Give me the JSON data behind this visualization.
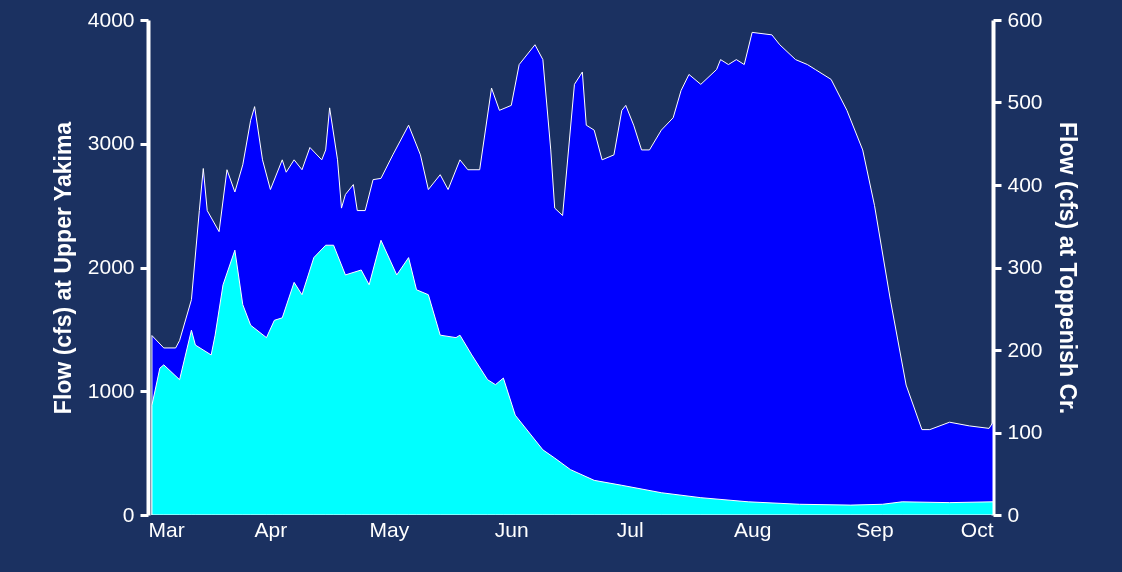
{
  "chart_data": {
    "type": "area",
    "ylabel": "Flow (cfs) at Upper Yakima",
    "y2label": "Flow (cfs) at Toppenish Cr.",
    "xlim": [
      "--03-01",
      "--10-01"
    ],
    "xticks": [
      {
        "value": "--03-01",
        "label": "Mar"
      },
      {
        "value": "--04-01",
        "label": "Apr"
      },
      {
        "value": "--05-01",
        "label": "May"
      },
      {
        "value": "--06-01",
        "label": "Jun"
      },
      {
        "value": "--07-01",
        "label": "Jul"
      },
      {
        "value": "--08-01",
        "label": "Aug"
      },
      {
        "value": "--09-01",
        "label": "Sep"
      },
      {
        "value": "--10-01",
        "label": "Oct"
      }
    ],
    "ylim": [
      0,
      4000
    ],
    "yticks": [
      0,
      1000,
      2000,
      3000,
      4000
    ],
    "y2lim": [
      0,
      600
    ],
    "y2ticks": [
      0,
      100,
      200,
      300,
      400,
      500,
      600
    ],
    "grid": false,
    "series": [
      {
        "color": "#0000ff",
        "x": [
          "--03-02",
          "--03-05",
          "--03-08",
          "--03-09",
          "--03-12",
          "--03-14",
          "--03-15",
          "--03-16",
          "--03-19",
          "--03-21",
          "--03-23",
          "--03-25",
          "--03-27",
          "--03-28",
          "--03-30",
          "--04-01",
          "--04-04",
          "--04-05",
          "--04-07",
          "--04-09",
          "--04-11",
          "--04-14",
          "--04-15",
          "--04-16",
          "--04-18",
          "--04-19",
          "--04-20",
          "--04-22",
          "--04-23",
          "--04-25",
          "--04-27",
          "--04-29",
          "--05-02",
          "--05-06",
          "--05-09",
          "--05-11",
          "--05-14",
          "--05-16",
          "--05-19",
          "--05-21",
          "--05-24",
          "--05-27",
          "--05-29",
          "--06-01",
          "--06-03",
          "--06-07",
          "--06-09",
          "--06-11",
          "--06-12",
          "--06-14",
          "--06-17",
          "--06-19",
          "--06-20",
          "--06-22",
          "--06-24",
          "--06-27",
          "--06-29",
          "--06-30",
          "--07-02",
          "--07-04",
          "--07-06",
          "--07-09",
          "--07-12",
          "--07-14",
          "--07-16",
          "--07-19",
          "--07-23",
          "--07-24",
          "--07-26",
          "--07-28",
          "--07-30",
          "--08-01",
          "--08-06",
          "--08-08",
          "--08-12",
          "--08-15",
          "--08-17",
          "--08-21",
          "--08-25",
          "--08-29",
          "--09-01",
          "--09-05",
          "--09-09",
          "--09-13",
          "--09-15",
          "--09-20",
          "--09-25",
          "--09-30",
          "--10-01"
        ],
        "values": [
          1450,
          1350,
          1350,
          1410,
          1740,
          2460,
          2800,
          2460,
          2290,
          2790,
          2610,
          2830,
          3190,
          3300,
          2870,
          2630,
          2870,
          2770,
          2870,
          2790,
          2970,
          2870,
          2950,
          3290,
          2870,
          2480,
          2590,
          2670,
          2460,
          2460,
          2710,
          2720,
          2910,
          3150,
          2910,
          2630,
          2750,
          2630,
          2870,
          2790,
          2790,
          3450,
          3270,
          3310,
          3640,
          3800,
          3680,
          2950,
          2480,
          2420,
          3480,
          3580,
          3150,
          3110,
          2870,
          2910,
          3270,
          3310,
          3150,
          2950,
          2950,
          3110,
          3210,
          3430,
          3560,
          3480,
          3600,
          3680,
          3640,
          3680,
          3640,
          3900,
          3880,
          3800,
          3680,
          3640,
          3600,
          3520,
          3270,
          2950,
          2500,
          1740,
          1050,
          690,
          690,
          750,
          720,
          700,
          750
        ]
      },
      {
        "color": "#00ffff",
        "axis": "y2",
        "x": [
          "--03-02",
          "--03-04",
          "--03-05",
          "--03-09",
          "--03-12",
          "--03-13",
          "--03-17",
          "--03-18",
          "--03-20",
          "--03-23",
          "--03-25",
          "--03-27",
          "--03-31",
          "--04-02",
          "--04-04",
          "--04-07",
          "--04-09",
          "--04-12",
          "--04-15",
          "--04-17",
          "--04-20",
          "--04-24",
          "--04-26",
          "--04-29",
          "--05-03",
          "--05-06",
          "--05-08",
          "--05-11",
          "--05-14",
          "--05-18",
          "--05-19",
          "--05-22",
          "--05-26",
          "--05-28",
          "--05-30",
          "--06-02",
          "--06-09",
          "--06-12",
          "--06-16",
          "--06-22",
          "--06-29",
          "--07-09",
          "--07-19",
          "--07-31",
          "--08-13",
          "--08-26",
          "--09-03",
          "--09-08",
          "--09-20",
          "--10-01"
        ],
        "values": [
          133,
          178,
          182,
          164,
          224,
          206,
          194,
          218,
          279,
          321,
          255,
          230,
          215,
          236,
          239,
          282,
          267,
          312,
          327,
          327,
          291,
          297,
          279,
          333,
          291,
          312,
          273,
          267,
          218,
          215,
          218,
          194,
          164,
          158,
          166,
          121,
          79,
          69,
          55,
          42,
          36,
          27,
          21,
          16,
          13,
          12,
          13,
          16,
          15,
          16
        ]
      }
    ]
  }
}
